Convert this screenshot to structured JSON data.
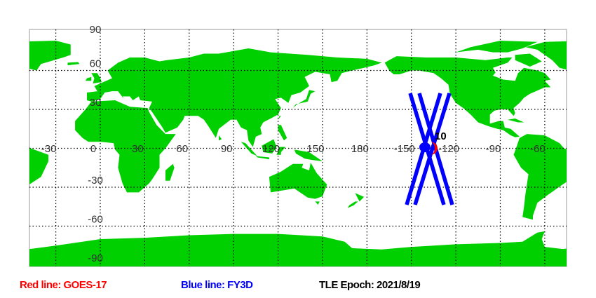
{
  "map": {
    "colors": {
      "land": "#00d000",
      "ocean": "#ffffff",
      "grid": "#000000",
      "border": "#bbbbbb"
    },
    "lon_labels": [
      "-30",
      "0",
      "30",
      "60",
      "90",
      "120",
      "150",
      "180",
      "-150",
      "-120",
      "-90",
      "-60"
    ],
    "lat_labels": [
      "90",
      "60",
      "30",
      "-30",
      "-60",
      "-90"
    ],
    "satellite_label": "10",
    "tracks": {
      "red": "#ff0000",
      "blue": "#0000ff"
    }
  },
  "legend": {
    "red_line": "Red line: GOES-17",
    "blue_line": "Blue line: FY3D",
    "epoch": "TLE Epoch: 2021/8/19"
  }
}
